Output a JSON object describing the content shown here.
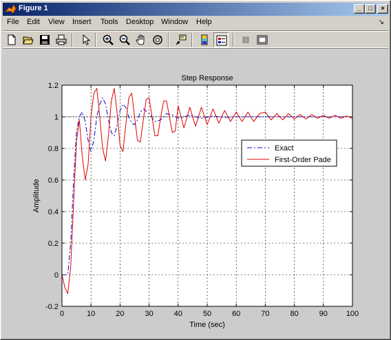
{
  "window": {
    "title": "Figure 1",
    "buttons": {
      "minimize": "_",
      "maximize": "□",
      "close": "×"
    }
  },
  "menu": {
    "items": [
      "File",
      "Edit",
      "View",
      "Insert",
      "Tools",
      "Desktop",
      "Window",
      "Help"
    ],
    "dock_arrow": "↘"
  },
  "toolbar": {
    "tools": [
      "new-figure-icon",
      "open-file-icon",
      "save-icon",
      "print-icon",
      "edit-plot-arrow-icon",
      "zoom-in-icon",
      "zoom-out-icon",
      "pan-hand-icon",
      "rotate-3d-icon",
      "data-cursor-icon",
      "colorbar-icon",
      "legend-icon",
      "hide-plot-tools-icon",
      "show-plot-tools-icon"
    ]
  },
  "chart_data": {
    "type": "line",
    "title": "Step Response",
    "xlabel": "Time (sec)",
    "ylabel": "Amplitude",
    "xlim": [
      0,
      100
    ],
    "ylim": [
      -0.2,
      1.2
    ],
    "xticks": [
      0,
      10,
      20,
      30,
      40,
      50,
      60,
      70,
      80,
      90,
      100
    ],
    "yticks": [
      -0.2,
      0,
      0.2,
      0.4,
      0.6,
      0.8,
      1,
      1.2
    ],
    "grid": true,
    "legend_position": "right",
    "colors": {
      "exact": "#0000cc",
      "pade": "#dd0000"
    },
    "series": [
      {
        "name": "Exact",
        "style": "dash-dot",
        "x": [
          0,
          2,
          3,
          4,
          5,
          6,
          7,
          8,
          9,
          10,
          11,
          12,
          13,
          14,
          15,
          16,
          17,
          18,
          19,
          20,
          21,
          22,
          23,
          24,
          25,
          26,
          27,
          28,
          30,
          32,
          34,
          36,
          38,
          40,
          44,
          48,
          52,
          56,
          60,
          70,
          80,
          90,
          100
        ],
        "y": [
          0,
          0,
          0.2,
          0.6,
          0.9,
          1.0,
          1.03,
          0.97,
          0.85,
          0.78,
          0.85,
          1.0,
          1.08,
          1.12,
          1.08,
          0.98,
          0.9,
          0.88,
          0.95,
          1.04,
          1.08,
          1.06,
          1.0,
          0.96,
          0.95,
          0.98,
          1.03,
          1.05,
          1.02,
          0.97,
          0.98,
          1.02,
          1.01,
          0.99,
          1.01,
          0.99,
          1.005,
          0.995,
          1.0,
          1.0,
          1.0,
          1.0,
          1.0
        ]
      },
      {
        "name": "First-Order Pade",
        "style": "solid",
        "x": [
          0,
          1,
          2,
          3,
          4,
          5,
          6,
          7,
          8,
          9,
          10,
          11,
          12,
          13,
          14,
          15,
          16,
          17,
          18,
          19,
          20,
          21,
          22,
          23,
          24,
          25,
          26,
          27,
          28,
          29,
          30,
          31,
          32,
          33,
          34,
          35,
          36,
          37,
          38,
          39,
          40,
          42,
          44,
          46,
          48,
          50,
          52,
          54,
          56,
          58,
          60,
          62,
          64,
          66,
          68,
          70,
          72,
          74,
          76,
          78,
          80,
          82,
          84,
          86,
          88,
          90,
          92,
          94,
          96,
          98,
          100
        ],
        "y": [
          0,
          -0.08,
          -0.12,
          0.05,
          0.45,
          0.85,
          0.98,
          0.75,
          0.6,
          0.7,
          1.0,
          1.15,
          1.18,
          1.0,
          0.8,
          0.72,
          0.88,
          1.1,
          1.18,
          1.02,
          0.82,
          0.78,
          0.95,
          1.12,
          1.15,
          1.0,
          0.85,
          0.84,
          0.98,
          1.11,
          1.12,
          1.0,
          0.88,
          0.88,
          1.0,
          1.1,
          1.1,
          1.0,
          0.9,
          0.91,
          1.07,
          0.93,
          1.06,
          0.94,
          1.06,
          0.95,
          1.05,
          0.96,
          1.04,
          0.97,
          1.03,
          0.97,
          1.03,
          0.97,
          1.02,
          1.03,
          0.98,
          1.02,
          0.98,
          1.02,
          0.985,
          1.015,
          0.985,
          1.015,
          0.99,
          1.01,
          0.99,
          1.01,
          0.99,
          1.005,
          0.99
        ]
      }
    ]
  }
}
